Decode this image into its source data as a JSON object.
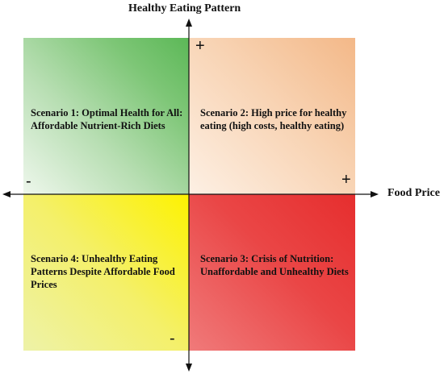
{
  "axes": {
    "y_title": "Healthy Eating Pattern",
    "x_title": "Food Price",
    "y_top_sign": "+",
    "x_right_sign": "+",
    "x_left_sign": "-",
    "y_bottom_sign": "-"
  },
  "quadrants": {
    "q1": {
      "line1": "Scenario 1: Optimal Health for All:",
      "line2": "Affordable Nutrient-Rich Diets",
      "color": "#6cc066"
    },
    "q2": {
      "line1": "Scenario 2: High price for healthy",
      "line2": "eating (high costs, healthy eating)",
      "color": "#f3b888"
    },
    "q3": {
      "line1": "Scenario 3: Crisis of Nutrition:",
      "line2": "Unaffordable and Unhealthy Diets",
      "color": "#e62e2e"
    },
    "q4": {
      "line1": "Scenario 4: Unhealthy Eating",
      "line2": "Patterns Despite Affordable Food",
      "line3": "Prices",
      "color": "#fdf200"
    }
  }
}
